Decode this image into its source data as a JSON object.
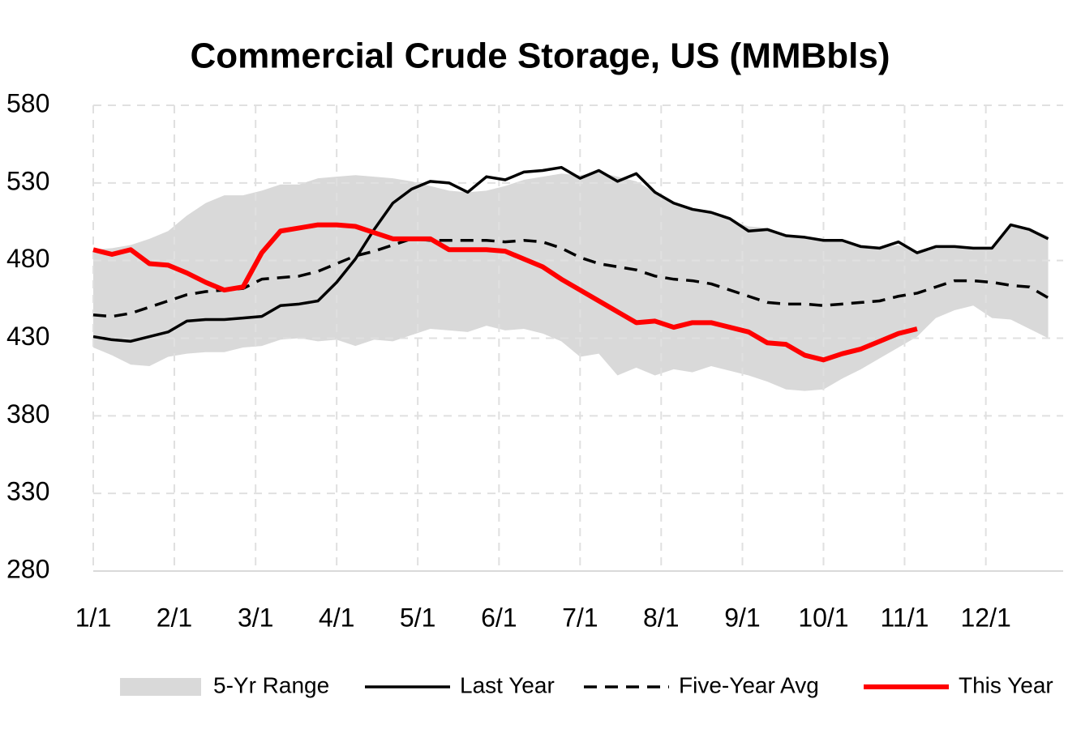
{
  "chart_data": {
    "type": "line",
    "title": "Commercial Crude Storage, US (MMBbls)",
    "x": [
      0,
      1,
      2,
      3,
      4,
      5,
      6,
      7,
      8,
      9,
      10,
      11,
      12,
      13,
      14,
      15,
      16,
      17,
      18,
      19,
      20,
      21,
      22,
      23,
      24,
      25,
      26,
      27,
      28,
      29,
      30,
      31,
      32,
      33,
      34,
      35,
      36,
      37,
      38,
      39,
      40,
      41,
      42,
      43,
      44,
      45,
      46,
      47,
      48,
      49,
      50,
      51
    ],
    "xlim": [
      0,
      51.8
    ],
    "xticks": [
      {
        "value": 0,
        "label": "1/1"
      },
      {
        "value": 4.33,
        "label": "2/1"
      },
      {
        "value": 8.67,
        "label": "3/1"
      },
      {
        "value": 13,
        "label": "4/1"
      },
      {
        "value": 17.33,
        "label": "5/1"
      },
      {
        "value": 21.67,
        "label": "6/1"
      },
      {
        "value": 26,
        "label": "7/1"
      },
      {
        "value": 30.33,
        "label": "8/1"
      },
      {
        "value": 34.67,
        "label": "9/1"
      },
      {
        "value": 39,
        "label": "10/1"
      },
      {
        "value": 43.33,
        "label": "11/1"
      },
      {
        "value": 47.67,
        "label": "12/1"
      }
    ],
    "ylim": [
      280,
      580
    ],
    "yticks": [
      280,
      330,
      380,
      430,
      480,
      530,
      580
    ],
    "grid": true,
    "legend": "bottom",
    "series": [
      {
        "name": "5-Yr Range",
        "color": "#d9d9d9",
        "style": "band",
        "high": [
          487,
          488,
          490,
          494,
          499,
          509,
          517,
          522,
          522,
          525,
          529,
          529,
          533,
          534,
          535,
          534,
          533,
          531,
          528,
          525,
          524,
          525,
          528,
          532,
          534,
          536,
          535,
          537,
          534,
          531,
          524,
          518,
          514,
          511,
          506,
          502,
          501,
          497,
          495,
          493,
          493,
          489,
          488,
          490,
          486,
          488,
          489,
          488,
          488,
          502,
          500,
          496
        ],
        "low": [
          424,
          419,
          413,
          412,
          418,
          420,
          421,
          421,
          424,
          425,
          429,
          430,
          428,
          429,
          425,
          429,
          428,
          432,
          436,
          435,
          434,
          438,
          435,
          436,
          433,
          428,
          418,
          420,
          406,
          411,
          406,
          410,
          408,
          412,
          409,
          406,
          402,
          397,
          396,
          397,
          404,
          410,
          417,
          424,
          431,
          443,
          448,
          451,
          443,
          442,
          436,
          430
        ]
      },
      {
        "name": "Last Year",
        "color": "#000000",
        "style": "solid",
        "width": 3.5,
        "values": [
          431,
          429,
          428,
          431,
          434,
          441,
          442,
          442,
          443,
          444,
          451,
          452,
          454,
          466,
          481,
          500,
          517,
          526,
          531,
          530,
          524,
          534,
          532,
          537,
          538,
          540,
          533,
          538,
          531,
          536,
          524,
          517,
          513,
          511,
          507,
          499,
          500,
          496,
          495,
          493,
          493,
          489,
          488,
          492,
          485,
          489,
          489,
          488,
          488,
          503,
          500,
          494
        ]
      },
      {
        "name": "Five-Year Avg",
        "color": "#000000",
        "style": "dash",
        "width": 3.5,
        "values": [
          445,
          444,
          446,
          450,
          454,
          458,
          460,
          461,
          462,
          468,
          469,
          470,
          473,
          478,
          483,
          486,
          490,
          494,
          493,
          493,
          493,
          493,
          492,
          493,
          492,
          488,
          482,
          478,
          476,
          474,
          470,
          468,
          467,
          465,
          461,
          457,
          453,
          452,
          452,
          451,
          452,
          453,
          454,
          457,
          459,
          463,
          467,
          467,
          466,
          464,
          463,
          456
        ]
      },
      {
        "name": "This Year",
        "color": "#ff0000",
        "style": "solid",
        "width": 6,
        "values": [
          487,
          484,
          487,
          478,
          477,
          472,
          466,
          461,
          463,
          485,
          499,
          501,
          503,
          503,
          502,
          498,
          494,
          494,
          494,
          487,
          487,
          487,
          486,
          481,
          476,
          468,
          461,
          454,
          447,
          440,
          441,
          437,
          440,
          440,
          437,
          434,
          427,
          426,
          419,
          416,
          420,
          423,
          428,
          433,
          436,
          null,
          null,
          null,
          null,
          null,
          null,
          null
        ]
      }
    ]
  }
}
